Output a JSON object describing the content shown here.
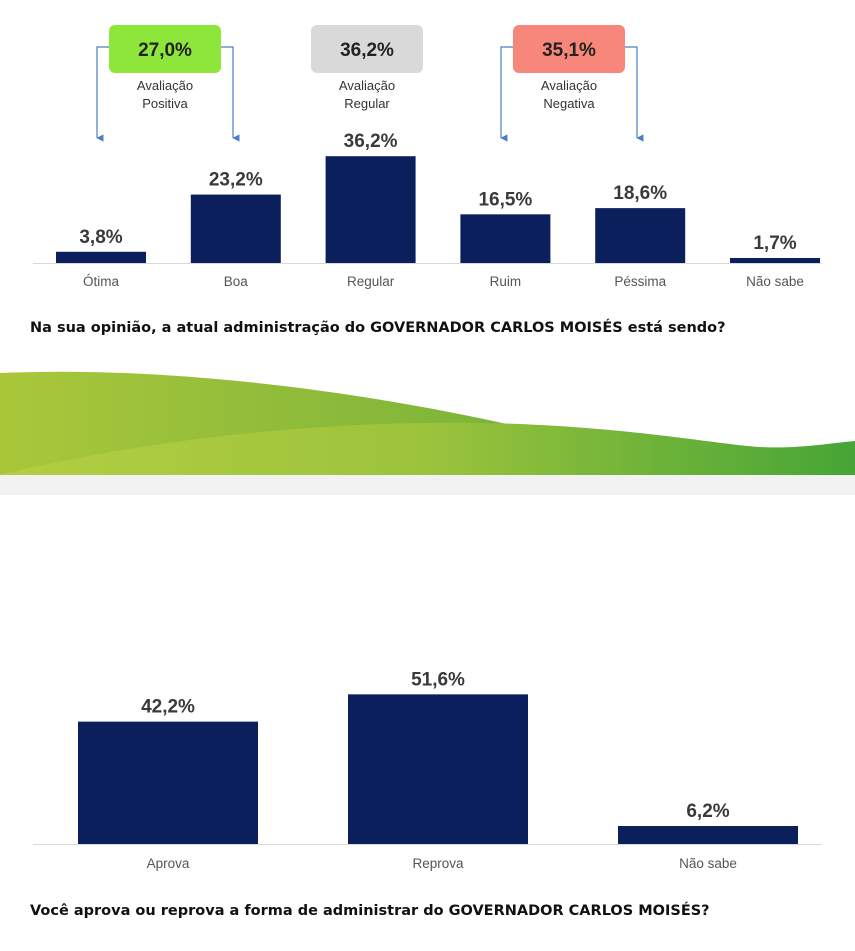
{
  "colors": {
    "bar": "#0a1f5c",
    "positive": "#8fe63a",
    "regular": "#d9d9d9",
    "negative": "#f7877a",
    "wave_light": "#a9c93a",
    "wave_dark": "#3f9e34",
    "arrow": "#4a7fc0"
  },
  "summary_boxes": [
    {
      "value": "27,0%",
      "label_line1": "Avaliação",
      "label_line2": "Positiva",
      "color": "positive"
    },
    {
      "value": "36,2%",
      "label_line1": "Avaliação",
      "label_line2": "Regular",
      "color": "regular"
    },
    {
      "value": "35,1%",
      "label_line1": "Avaliação",
      "label_line2": "Negativa",
      "color": "negative"
    }
  ],
  "questions": {
    "q1": "Na sua opinião, a atual administração do GOVERNADOR CARLOS MOISÉS está sendo?",
    "q2": "Você aprova ou reprova a forma de administrar do GOVERNADOR CARLOS MOISÉS?"
  },
  "chart_data": [
    {
      "type": "bar",
      "categories": [
        "Ótima",
        "Boa",
        "Regular",
        "Ruim",
        "Péssima",
        "Não sabe"
      ],
      "values": [
        3.8,
        23.2,
        36.2,
        16.5,
        18.6,
        1.7
      ],
      "data_labels": [
        "3,8%",
        "23,2%",
        "36,2%",
        "16,5%",
        "18,6%",
        "1,7%"
      ],
      "title": "Na sua opinião, a atual administração do GOVERNADOR CARLOS MOISÉS está sendo?",
      "xlabel": "",
      "ylabel": "",
      "ylim": [
        0,
        40
      ],
      "grid": false
    },
    {
      "type": "bar",
      "categories": [
        "Aprova",
        "Reprova",
        "Não sabe"
      ],
      "values": [
        42.2,
        51.6,
        6.2
      ],
      "data_labels": [
        "42,2%",
        "51,6%",
        "6,2%"
      ],
      "title": "Você aprova ou reprova a forma de administrar do GOVERNADOR CARLOS MOISÉS?",
      "xlabel": "",
      "ylabel": "",
      "ylim": [
        0,
        60
      ],
      "grid": false
    }
  ]
}
